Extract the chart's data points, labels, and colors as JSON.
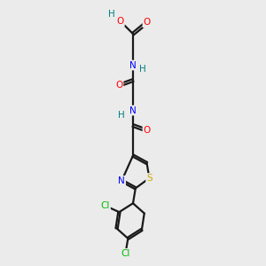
{
  "background_color": "#ebebeb",
  "bond_color": "#1a1a1a",
  "atom_colors": {
    "O": "#ff0000",
    "N": "#0000ff",
    "S": "#ccaa00",
    "Cl": "#00bb00",
    "H": "#008080",
    "C": "#1a1a1a"
  },
  "figsize": [
    3.0,
    3.0
  ],
  "dpi": 100
}
